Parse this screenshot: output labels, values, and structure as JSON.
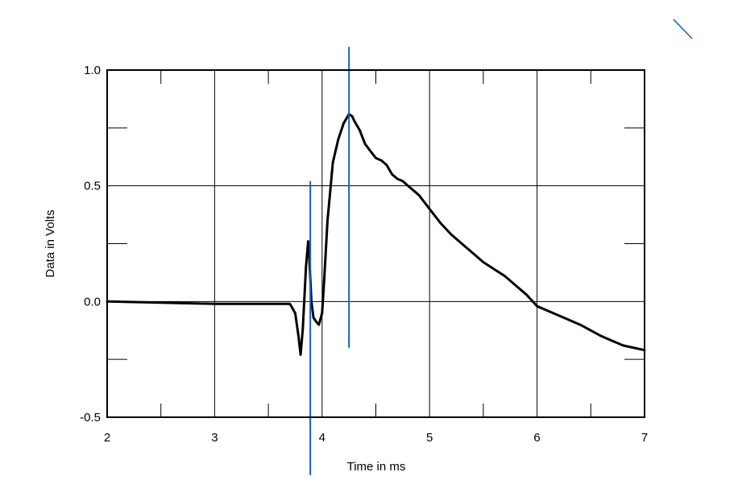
{
  "chart_data": {
    "type": "line",
    "xlabel": "Time in ms",
    "ylabel": "Data in Volts",
    "xlim": [
      2,
      7
    ],
    "ylim": [
      -0.5,
      1.0
    ],
    "x_ticks": [
      2,
      3,
      4,
      5,
      6,
      7
    ],
    "x_tick_labels": [
      "2",
      "3",
      "4",
      "5",
      "6",
      "7"
    ],
    "x_minor_ticks": [
      2.5,
      3.5,
      4.5,
      5.5,
      6.5
    ],
    "y_ticks": [
      -0.5,
      0.0,
      0.5,
      1.0
    ],
    "y_tick_labels": [
      "-0.5",
      "0.0",
      "0.5",
      "1.0"
    ],
    "y_minor_ticks": [
      -0.25,
      0.25,
      0.75
    ],
    "grid": true,
    "line_color": "#000000",
    "marker_color": "#1a5fc9",
    "series": [
      {
        "x": [
          2.0,
          3.0,
          3.7,
          3.75,
          3.78,
          3.8,
          3.82,
          3.85,
          3.87,
          3.88,
          3.9,
          3.92,
          3.95,
          3.97,
          4.0,
          4.02,
          4.05,
          4.08,
          4.1,
          4.15,
          4.2,
          4.25,
          4.28,
          4.3,
          4.35,
          4.4,
          4.45,
          4.5,
          4.55,
          4.6,
          4.65,
          4.7,
          4.75,
          4.8,
          4.9,
          5.0,
          5.1,
          5.2,
          5.3,
          5.4,
          5.5,
          5.6,
          5.7,
          5.8,
          5.9,
          6.0,
          6.2,
          6.4,
          6.6,
          6.8,
          7.0
        ],
        "y": [
          0.0,
          -0.01,
          -0.01,
          -0.05,
          -0.15,
          -0.23,
          -0.12,
          0.15,
          0.26,
          0.2,
          0.0,
          -0.07,
          -0.09,
          -0.1,
          -0.05,
          0.1,
          0.35,
          0.5,
          0.6,
          0.7,
          0.77,
          0.81,
          0.8,
          0.78,
          0.74,
          0.68,
          0.65,
          0.62,
          0.61,
          0.59,
          0.55,
          0.53,
          0.52,
          0.5,
          0.46,
          0.4,
          0.34,
          0.29,
          0.25,
          0.21,
          0.17,
          0.14,
          0.11,
          0.07,
          0.03,
          -0.02,
          -0.06,
          -0.1,
          -0.15,
          -0.19,
          -0.21
        ]
      }
    ],
    "vertical_markers": [
      {
        "x": 3.89,
        "y_from": 0.52,
        "y_to": -0.75
      },
      {
        "x": 4.25,
        "y_from": 1.1,
        "y_to": -0.2
      }
    ]
  }
}
